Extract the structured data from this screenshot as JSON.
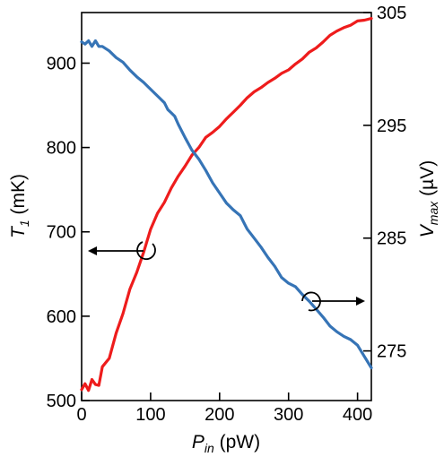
{
  "chart_data": {
    "type": "line",
    "xlabel": {
      "main": "P",
      "sub": "in",
      "unit": " (pW)"
    },
    "ylabel_left": {
      "main": "T",
      "sub": "1",
      "unit": " (mK)"
    },
    "ylabel_right": {
      "main": "V",
      "sub": "max",
      "unit": " (µV)"
    },
    "xlim": [
      0,
      420
    ],
    "ylim_left": [
      500,
      960
    ],
    "ylim_right": [
      270.6,
      305
    ],
    "x_ticks": [
      "0",
      "100",
      "200",
      "300",
      "400"
    ],
    "x_tick_values": [
      0,
      100,
      200,
      300,
      400
    ],
    "y_left_ticks": [
      "500",
      "600",
      "700",
      "800",
      "900"
    ],
    "y_left_tick_values": [
      500,
      600,
      700,
      800,
      900
    ],
    "y_right_ticks": [
      "275",
      "285",
      "295",
      "305"
    ],
    "y_right_tick_values": [
      275,
      285,
      295,
      305
    ],
    "grid": false,
    "series": [
      {
        "axis": "left",
        "color": "#ee1c1c",
        "x": [
          0,
          5,
          10,
          15,
          20,
          25,
          30,
          40,
          50,
          60,
          70,
          80,
          90,
          100,
          110,
          120,
          130,
          140,
          150,
          160,
          170,
          180,
          190,
          200,
          210,
          220,
          230,
          240,
          250,
          260,
          270,
          280,
          290,
          300,
          310,
          320,
          330,
          340,
          350,
          360,
          370,
          380,
          390,
          400,
          410,
          420
        ],
        "values": [
          513,
          520,
          512,
          525,
          519,
          518,
          540,
          550,
          580,
          603,
          632,
          652,
          676,
          703,
          722,
          735,
          752,
          766,
          778,
          791,
          800,
          812,
          818,
          825,
          834,
          842,
          850,
          859,
          866,
          871,
          877,
          882,
          888,
          892,
          899,
          905,
          913,
          918,
          925,
          933,
          938,
          942,
          945,
          950,
          951,
          953
        ]
      },
      {
        "axis": "right",
        "color": "#3674b6",
        "x": [
          0,
          5,
          10,
          15,
          20,
          25,
          30,
          40,
          50,
          60,
          70,
          80,
          90,
          100,
          110,
          120,
          125,
          130,
          135,
          140,
          150,
          160,
          170,
          180,
          190,
          200,
          210,
          220,
          230,
          240,
          250,
          260,
          270,
          280,
          290,
          300,
          310,
          320,
          330,
          340,
          350,
          360,
          370,
          380,
          390,
          400,
          410,
          420
        ],
        "values": [
          302.4,
          302.2,
          302.5,
          302.0,
          302.5,
          302.0,
          302.0,
          301.6,
          301.0,
          300.6,
          299.9,
          299.3,
          298.8,
          298.2,
          297.6,
          297.0,
          296.4,
          296.1,
          295.8,
          295.1,
          293.9,
          292.8,
          292.0,
          291.0,
          289.9,
          289.0,
          288.1,
          287.5,
          287.0,
          285.8,
          285.0,
          284.2,
          283.3,
          282.5,
          281.5,
          281.0,
          280.7,
          280.0,
          279.4,
          278.7,
          278.0,
          277.2,
          276.7,
          276.3,
          276.0,
          275.5,
          274.5,
          273.5
        ]
      }
    ]
  }
}
